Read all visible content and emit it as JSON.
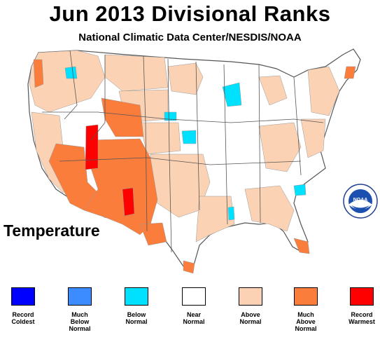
{
  "title": "Jun 2013 Divisional Ranks",
  "subtitle": "National Climatic Data Center/NESDIS/NOAA",
  "variable": "Temperature",
  "logo": {
    "name": "noaa-seal",
    "text": "NOAA",
    "ring_text": "NATIONAL OCEANIC AND ATMOSPHERIC ADMINISTRATION · U.S. DEPARTMENT OF COMMERCE"
  },
  "legend": [
    {
      "lines": [
        "Record",
        "Coldest"
      ],
      "color": "#0000ff"
    },
    {
      "lines": [
        "Much",
        "Below",
        "Normal"
      ],
      "color": "#3c8cff"
    },
    {
      "lines": [
        "Below",
        "Normal"
      ],
      "color": "#00e1ff"
    },
    {
      "lines": [
        "Near",
        "Normal"
      ],
      "color": "#ffffff"
    },
    {
      "lines": [
        "Above",
        "Normal"
      ],
      "color": "#fcd2b4"
    },
    {
      "lines": [
        "Much",
        "Above",
        "Normal"
      ],
      "color": "#fa7d3c"
    },
    {
      "lines": [
        "Record",
        "Warmest"
      ],
      "color": "#ff0000"
    }
  ],
  "colors": {
    "near": "#ffffff",
    "above": "#fcd2b4",
    "much_above": "#fa7d3c",
    "record_warm": "#ff0000",
    "below": "#00e1ff",
    "border": "#999999",
    "state_border": "#555555"
  }
}
